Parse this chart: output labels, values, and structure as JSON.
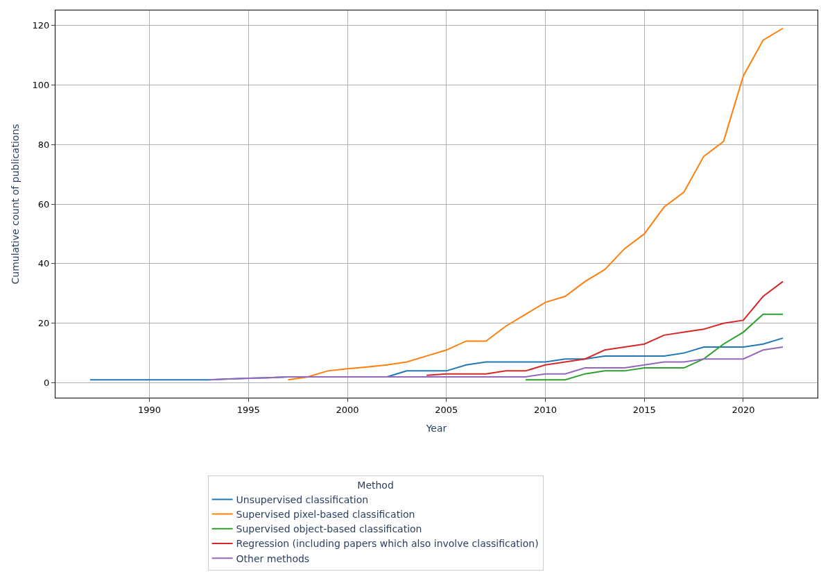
{
  "chart_data": {
    "type": "line",
    "xlabel": "Year",
    "ylabel": "Cumulative count of publications",
    "legend_title": "Method",
    "legend": "bottom",
    "grid": true,
    "xlim": [
      1985.25,
      2023.75
    ],
    "xticks": [
      1990,
      1995,
      2000,
      2005,
      2010,
      2015,
      2020
    ],
    "ylim": [
      -5,
      125
    ],
    "yticks": [
      0,
      20,
      40,
      60,
      80,
      100,
      120
    ],
    "series": [
      {
        "name": "Unsupervised classification",
        "color": "#1f77b4",
        "x": [
          1987,
          1988,
          1989,
          1990,
          1991,
          1992,
          1993,
          1994,
          1995,
          1996,
          1997,
          1998,
          1999,
          2000,
          2001,
          2002,
          2003,
          2004,
          2005,
          2006,
          2007,
          2008,
          2009,
          2010,
          2011,
          2012,
          2013,
          2014,
          2015,
          2016,
          2017,
          2018,
          2019,
          2020,
          2021,
          2022
        ],
        "values": [
          1,
          1,
          1,
          1,
          1,
          1,
          1,
          1.3,
          1.5,
          1.7,
          2,
          null,
          null,
          null,
          null,
          2,
          4,
          4,
          4,
          6,
          7,
          7,
          7,
          7,
          8,
          8,
          9,
          9,
          9,
          9,
          10,
          12,
          12,
          12,
          13,
          15
        ]
      },
      {
        "name": "Supervised pixel-based classification",
        "color": "#ff7f0e",
        "x": [
          1997,
          1998,
          1999,
          2000,
          2001,
          2002,
          2003,
          2004,
          2005,
          2006,
          2007,
          2008,
          2009,
          2010,
          2011,
          2012,
          2013,
          2014,
          2015,
          2016,
          2017,
          2018,
          2019,
          2020,
          2021,
          2022
        ],
        "values": [
          1,
          2,
          4,
          4.7,
          5.3,
          6,
          7,
          9,
          11,
          14,
          14,
          19,
          23,
          27,
          29,
          34,
          38,
          45,
          50,
          59,
          64,
          76,
          81,
          103,
          115,
          119
        ]
      },
      {
        "name": "Supervised object-based classification",
        "color": "#2ca02c",
        "x": [
          2009,
          2010,
          2011,
          2012,
          2013,
          2014,
          2015,
          2016,
          2017,
          2018,
          2019,
          2020,
          2021,
          2022
        ],
        "values": [
          1,
          1,
          1,
          3,
          4,
          4,
          5,
          5,
          5,
          8,
          13,
          17,
          23,
          23
        ]
      },
      {
        "name": "Regression (including papers which also involve classification)",
        "color": "#d62728",
        "x": [
          2004,
          2005,
          2006,
          2007,
          2008,
          2009,
          2010,
          2011,
          2012,
          2013,
          2014,
          2015,
          2016,
          2017,
          2018,
          2019,
          2020,
          2021,
          2022
        ],
        "values": [
          2.5,
          3,
          3,
          3,
          4,
          4,
          6,
          7,
          8,
          11,
          12,
          13,
          16,
          17,
          18,
          20,
          21,
          29,
          34
        ]
      },
      {
        "name": "Other methods",
        "color": "#9467bd",
        "x": [
          1993,
          1994,
          1995,
          1996,
          1997,
          1998,
          1999,
          2000,
          2001,
          2002,
          2003,
          2004,
          2005,
          2006,
          2007,
          2008,
          2009,
          2010,
          2011,
          2012,
          2013,
          2014,
          2015,
          2016,
          2017,
          2018,
          2019,
          2020,
          2021,
          2022
        ],
        "values": [
          1,
          1.3,
          1.5,
          1.7,
          2,
          2,
          2,
          2,
          2,
          2,
          2,
          2,
          2,
          2,
          2,
          2,
          2,
          3,
          3,
          5,
          5,
          5,
          6,
          7,
          7,
          8,
          8,
          8,
          11,
          12
        ]
      }
    ]
  }
}
